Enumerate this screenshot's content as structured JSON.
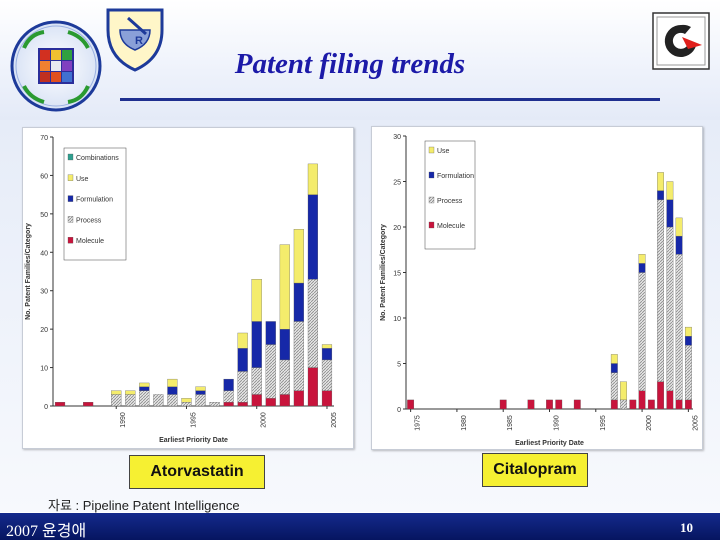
{
  "slide": {
    "title": "Patent filing trends",
    "source": "자료 : Pipeline Patent Intelligence",
    "footer_left": "2007 윤경애",
    "page_number": "10"
  },
  "colors": {
    "molecule": "#c8143c",
    "process": "#c4c4c4",
    "formulation": "#1628a8",
    "use": "#f4ec6c",
    "combinations": "#2f9f8f",
    "footer": "#0e1f78",
    "label_box": "#f6f032"
  },
  "icons": [
    "pharmacy-logo-icon",
    "rx-mortar-icon",
    "company-logo-icon"
  ],
  "chart_data": [
    {
      "type": "bar",
      "stacked": true,
      "caption": "Atorvastatin",
      "xlabel": "Earliest Priority Date",
      "ylabel": "No. Patent Families/Category",
      "ylim": [
        0,
        70
      ],
      "yticks": [
        "0",
        "10",
        "20",
        "30",
        "40",
        "50",
        "60",
        "70"
      ],
      "xrange": [
        1986,
        2005
      ],
      "xticks": [
        "1990",
        "1995",
        "2000",
        "2005"
      ],
      "legend": [
        "Combinations",
        "Use",
        "Formulation",
        "Process",
        "Molecule"
      ],
      "legend_position": "top-left",
      "x": [
        1986,
        1987,
        1988,
        1989,
        1990,
        1991,
        1992,
        1993,
        1994,
        1995,
        1996,
        1997,
        1998,
        1999,
        2000,
        2001,
        2002,
        2003,
        2004,
        2005
      ],
      "series": [
        {
          "name": "Molecule",
          "values": [
            1,
            0,
            1,
            0,
            0,
            0,
            0,
            0,
            0,
            0,
            0,
            0,
            1,
            1,
            3,
            2,
            3,
            4,
            10,
            4
          ]
        },
        {
          "name": "Process",
          "values": [
            0,
            0,
            0,
            0,
            3,
            3,
            4,
            3,
            3,
            1,
            3,
            1,
            3,
            8,
            7,
            14,
            9,
            18,
            23,
            8
          ]
        },
        {
          "name": "Formulation",
          "values": [
            0,
            0,
            0,
            0,
            0,
            0,
            1,
            0,
            2,
            0,
            1,
            0,
            3,
            6,
            12,
            6,
            8,
            10,
            22,
            3
          ]
        },
        {
          "name": "Use",
          "values": [
            0,
            0,
            0,
            0,
            1,
            1,
            1,
            0,
            2,
            1,
            1,
            0,
            0,
            4,
            11,
            0,
            22,
            14,
            8,
            1
          ]
        },
        {
          "name": "Combinations",
          "values": [
            0,
            0,
            0,
            0,
            0,
            0,
            0,
            0,
            0,
            0,
            0,
            0,
            0,
            0,
            0,
            0,
            0,
            0,
            0,
            0
          ]
        }
      ]
    },
    {
      "type": "bar",
      "stacked": true,
      "caption": "Citalopram",
      "xlabel": "Earliest Priority Date",
      "ylabel": "No. Patent Families/Category",
      "ylim": [
        0,
        30
      ],
      "yticks": [
        "0",
        "5",
        "10",
        "15",
        "20",
        "25",
        "30"
      ],
      "xrange": [
        1975,
        2005
      ],
      "xticks": [
        "1975",
        "1980",
        "1985",
        "1990",
        "1995",
        "2000",
        "2005"
      ],
      "legend": [
        "Use",
        "Formulation",
        "Process",
        "Molecule"
      ],
      "legend_position": "top-left",
      "x": [
        1975,
        1976,
        1977,
        1978,
        1979,
        1980,
        1981,
        1982,
        1983,
        1984,
        1985,
        1986,
        1987,
        1988,
        1989,
        1990,
        1991,
        1992,
        1993,
        1994,
        1995,
        1996,
        1997,
        1998,
        1999,
        2000,
        2001,
        2002,
        2003,
        2004,
        2005
      ],
      "series": [
        {
          "name": "Molecule",
          "values": [
            1,
            0,
            0,
            0,
            0,
            0,
            0,
            0,
            0,
            0,
            1,
            0,
            0,
            1,
            0,
            1,
            1,
            0,
            1,
            0,
            0,
            0,
            1,
            0,
            1,
            2,
            1,
            3,
            2,
            1,
            1
          ]
        },
        {
          "name": "Process",
          "values": [
            0,
            0,
            0,
            0,
            0,
            0,
            0,
            0,
            0,
            0,
            0,
            0,
            0,
            0,
            0,
            0,
            0,
            0,
            0,
            0,
            0,
            0,
            3,
            1,
            0,
            13,
            0,
            20,
            18,
            16,
            6
          ]
        },
        {
          "name": "Formulation",
          "values": [
            0,
            0,
            0,
            0,
            0,
            0,
            0,
            0,
            0,
            0,
            0,
            0,
            0,
            0,
            0,
            0,
            0,
            0,
            0,
            0,
            0,
            0,
            1,
            0,
            0,
            1,
            0,
            1,
            3,
            2,
            1
          ]
        },
        {
          "name": "Use",
          "values": [
            0,
            0,
            0,
            0,
            0,
            0,
            0,
            0,
            0,
            0,
            0,
            0,
            0,
            0,
            0,
            0,
            0,
            0,
            0,
            0,
            0,
            0,
            1,
            2,
            0,
            1,
            0,
            2,
            2,
            2,
            1
          ]
        }
      ]
    }
  ]
}
